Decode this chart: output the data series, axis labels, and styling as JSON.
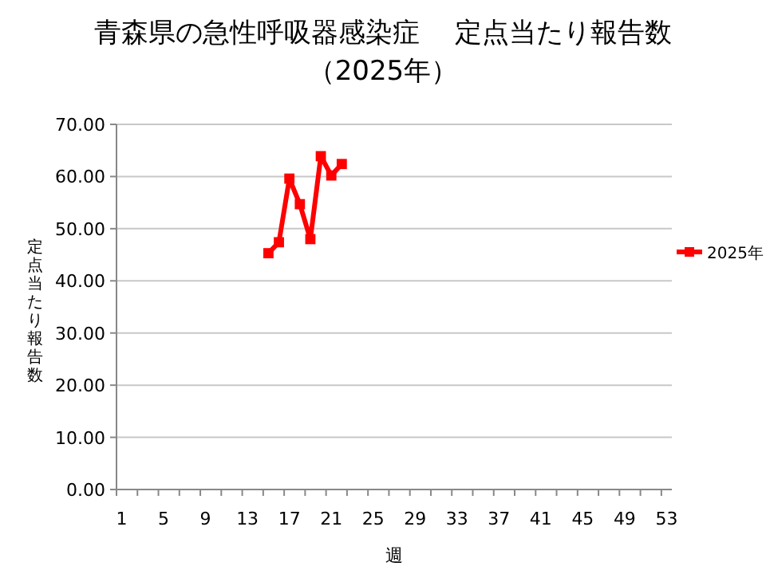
{
  "chart_data": {
    "type": "line",
    "title": "青森県の急性呼吸器感染症　 定点当たり報告数",
    "subtitle": "（2025年）",
    "xlabel": "週",
    "ylabel": "定点当たり報告数",
    "categories": [
      "1",
      null,
      null,
      null,
      "5",
      null,
      null,
      null,
      "9",
      null,
      null,
      null,
      "13",
      null,
      null,
      null,
      "17",
      null,
      null,
      null,
      "21",
      null,
      null,
      null,
      "25",
      null,
      null,
      null,
      "29",
      null,
      null,
      null,
      "33",
      null,
      null,
      null,
      "37",
      null,
      null,
      null,
      "41",
      null,
      null,
      null,
      "45",
      null,
      null,
      null,
      "49",
      null,
      null,
      null,
      "53"
    ],
    "series": [
      {
        "name": "2025年",
        "color": "#ff0000",
        "values": [
          null,
          null,
          null,
          null,
          null,
          null,
          null,
          null,
          null,
          null,
          null,
          null,
          null,
          null,
          45.3,
          47.4,
          59.6,
          54.7,
          48.0,
          63.9,
          60.2,
          62.4,
          null,
          null,
          null,
          null,
          null,
          null,
          null,
          null,
          null,
          null,
          null,
          null,
          null,
          null,
          null,
          null,
          null,
          null,
          null,
          null,
          null,
          null,
          null,
          null,
          null,
          null,
          null,
          null,
          null,
          null,
          null
        ]
      }
    ],
    "ylim": [
      0,
      70
    ],
    "yticks": [
      {
        "value": 0,
        "label": "0.00"
      },
      {
        "value": 10,
        "label": "10.00"
      },
      {
        "value": 20,
        "label": "20.00"
      },
      {
        "value": 30,
        "label": "30.00"
      },
      {
        "value": 40,
        "label": "40.00"
      },
      {
        "value": 50,
        "label": "50.00"
      },
      {
        "value": 60,
        "label": "60.00"
      },
      {
        "value": 70,
        "label": "70.00"
      }
    ],
    "grid": "y",
    "legend": "right",
    "marker": "square",
    "line_style": "solid"
  }
}
